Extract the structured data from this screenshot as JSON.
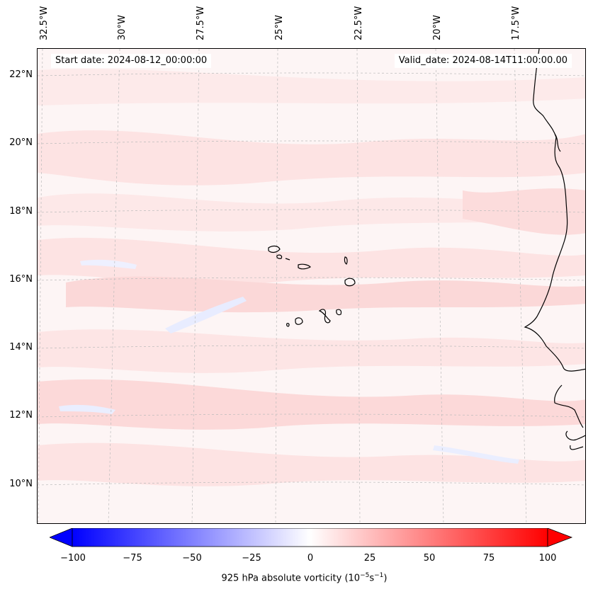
{
  "start_date": "Start date: 2024-08-12_00:00:00",
  "valid_date": "Valid_date: 2024-08-14T11:00:00.00",
  "lon_labels": [
    "32.5°W",
    "30°W",
    "27.5°W",
    "25°W",
    "22.5°W",
    "20°W",
    "17.5°W"
  ],
  "lat_labels": [
    "22°N",
    "20°N",
    "18°N",
    "16°N",
    "14°N",
    "12°N",
    "10°N"
  ],
  "colorbar": {
    "ticks": [
      "−100",
      "−75",
      "−50",
      "−25",
      "0",
      "25",
      "50",
      "75",
      "100"
    ],
    "label": "925 hPa absolute vorticity (10",
    "label_sup1": "−5",
    "label_mid": "s",
    "label_sup2": "−1",
    "label_end": ")",
    "min_color": "#0000ff",
    "mid_color": "#ffffff",
    "max_color": "#ff0000"
  },
  "colors": {
    "background_field": "#fdf5f5",
    "light_pink": "#fde3e3",
    "mid_pink": "#fbd3d3",
    "light_blue": "#eef0ff",
    "coast": "#000000",
    "grid": "#bbbbbb"
  }
}
